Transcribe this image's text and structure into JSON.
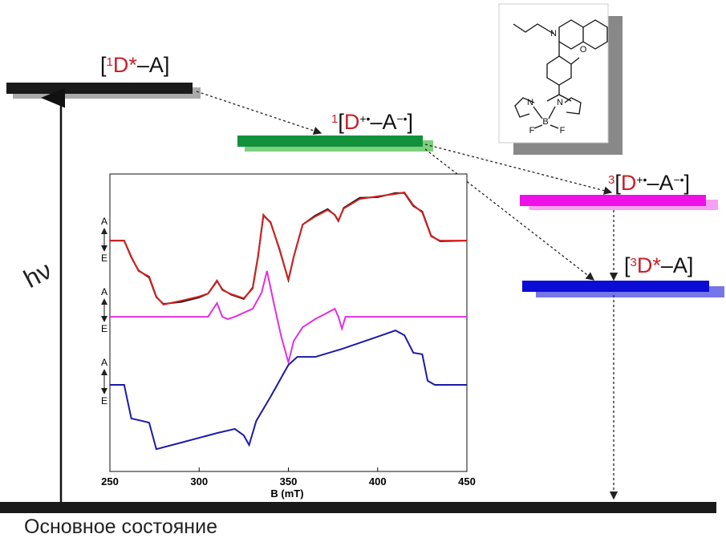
{
  "levels": [
    {
      "parts": [
        "[",
        "1",
        "D*",
        "–A]"
      ]
    },
    {
      "parts": [
        "1",
        "[",
        "D",
        "+•",
        "–A",
        "−•",
        "]"
      ]
    },
    {
      "parts": [
        "3",
        "[",
        "D",
        "+•",
        "–A",
        "−•",
        "]"
      ]
    },
    {
      "parts": [
        "[",
        "3",
        "D*",
        "–A]"
      ]
    }
  ],
  "excitation": "hν",
  "ground_state": "Основное состояние",
  "molecule": {
    "atoms": [
      "N",
      "O",
      "N",
      "N",
      "B",
      "F",
      "F"
    ]
  },
  "chart_data": {
    "type": "line",
    "xlabel": "B (mT)",
    "xlim": [
      250,
      450
    ],
    "xticks": [
      250,
      300,
      350,
      400,
      450
    ],
    "ylim": [
      0,
      100
    ],
    "phase_labels": [
      [
        "A",
        "E"
      ],
      [
        "A",
        "E"
      ],
      [
        "A",
        "E"
      ]
    ],
    "series": [
      {
        "color": "#111111",
        "x": [
          250,
          258,
          262,
          266,
          272,
          276,
          280,
          290,
          300,
          305,
          310,
          313,
          318,
          325,
          330,
          333,
          336,
          340,
          345,
          350,
          353,
          358,
          365,
          372,
          376,
          378,
          381,
          390,
          400,
          410,
          415,
          420,
          425,
          430,
          435,
          450
        ],
        "values": [
          77.6,
          77.6,
          72.0,
          67.6,
          65.2,
          58.6,
          56.3,
          57.0,
          58.5,
          59.8,
          64.0,
          61.2,
          59.4,
          58.0,
          61.8,
          72.4,
          86.0,
          83.8,
          74.6,
          64.4,
          72.2,
          83.0,
          86.0,
          88.2,
          86.2,
          84.2,
          88.6,
          92.0,
          92.2,
          93.6,
          93.6,
          89.2,
          87.4,
          79.2,
          77.4,
          77.6
        ]
      },
      {
        "color": "#d62020",
        "x": [
          250,
          258,
          262,
          266,
          272,
          276,
          280,
          290,
          300,
          305,
          310,
          313,
          318,
          325,
          330,
          333,
          336,
          340,
          345,
          350,
          353,
          358,
          365,
          372,
          376,
          378,
          381,
          390,
          400,
          410,
          415,
          420,
          425,
          430,
          435,
          450
        ],
        "values": [
          77.6,
          77.6,
          72.2,
          67.4,
          65.5,
          58.8,
          56.1,
          57.4,
          58.8,
          59.8,
          64.2,
          61.0,
          59.6,
          58.2,
          61.5,
          72.2,
          86.3,
          83.6,
          74.9,
          64.2,
          72.2,
          83.0,
          85.7,
          87.9,
          86.3,
          84.4,
          88.4,
          91.6,
          92.5,
          93.3,
          93.8,
          89.5,
          87.1,
          79.0,
          77.6,
          77.6
        ]
      },
      {
        "color": "#e030e0",
        "x": [
          250,
          305,
          310,
          313,
          316,
          320,
          330,
          335,
          338,
          342,
          346,
          350,
          353,
          358,
          365,
          372,
          376,
          378,
          380,
          382,
          390,
          450
        ],
        "values": [
          52.0,
          52.0,
          56.6,
          52.0,
          51.2,
          52.0,
          54.7,
          60.1,
          67.4,
          56.1,
          45.3,
          36.7,
          43.9,
          48.5,
          51.2,
          53.4,
          54.7,
          52.0,
          48.0,
          52.0,
          52.0,
          52.0
        ]
      },
      {
        "color": "#1a1aaa",
        "x": [
          250,
          258,
          262,
          268,
          272,
          276,
          290,
          310,
          320,
          325,
          328,
          332,
          340,
          350,
          355,
          365,
          380,
          400,
          410,
          415,
          420,
          425,
          428,
          432,
          450
        ],
        "values": [
          29.1,
          29.1,
          17.8,
          17.0,
          16.4,
          7.5,
          9.7,
          12.9,
          14.3,
          12.1,
          8.9,
          17.0,
          25.1,
          35.8,
          38.5,
          38.5,
          41.2,
          45.3,
          47.4,
          45.8,
          39.9,
          39.4,
          30.5,
          29.1,
          29.1
        ]
      }
    ]
  }
}
